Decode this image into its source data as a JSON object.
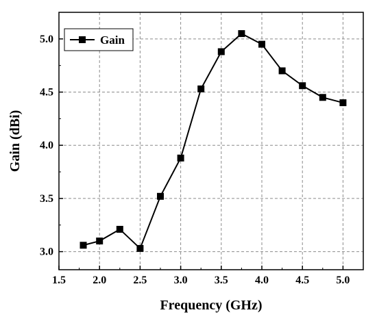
{
  "chart_data": {
    "type": "line",
    "title": "",
    "xlabel": "Frequency (GHz)",
    "ylabel": "Gain (dBi)",
    "xlim": [
      1.5,
      5.25
    ],
    "ylim": [
      2.83,
      5.25
    ],
    "xticks": [
      1.5,
      2.0,
      2.5,
      3.0,
      3.5,
      4.0,
      4.5,
      5.0
    ],
    "xtick_labels": [
      "1.5",
      "2.0",
      "2.5",
      "3.0",
      "3.5",
      "4.0",
      "4.5",
      "5.0"
    ],
    "yticks": [
      3.0,
      3.5,
      4.0,
      4.5,
      5.0
    ],
    "ytick_labels": [
      "3.0",
      "3.5",
      "4.0",
      "4.5",
      "5.0"
    ],
    "grid": true,
    "legend_position": "top-left",
    "marker": "square",
    "line_color": "#000000",
    "series": [
      {
        "name": "Gain",
        "x": [
          1.8,
          2.0,
          2.25,
          2.5,
          2.75,
          3.0,
          3.25,
          3.5,
          3.75,
          4.0,
          4.25,
          4.5,
          4.75,
          5.0
        ],
        "values": [
          3.06,
          3.1,
          3.21,
          3.03,
          3.52,
          3.88,
          4.53,
          4.88,
          5.05,
          4.95,
          4.7,
          4.56,
          4.45,
          4.4
        ]
      }
    ]
  }
}
